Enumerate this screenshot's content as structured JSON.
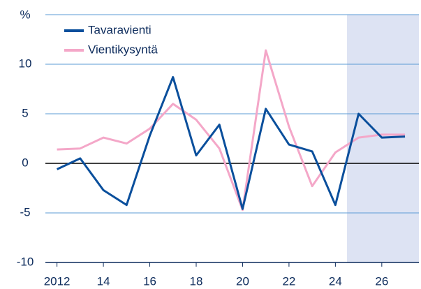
{
  "chart_data": {
    "type": "line",
    "y_unit": "%",
    "x": [
      2012,
      2013,
      2014,
      2015,
      2016,
      2017,
      2018,
      2019,
      2020,
      2021,
      2022,
      2023,
      2024,
      2025,
      2026,
      2027
    ],
    "series": [
      {
        "name": "Tavaravienti",
        "color": "#0a4f9c",
        "values": [
          -0.6,
          0.5,
          -2.7,
          -4.2,
          2.8,
          8.7,
          0.8,
          3.9,
          -4.6,
          5.5,
          1.9,
          1.2,
          -4.2,
          5.0,
          2.6,
          2.7
        ]
      },
      {
        "name": "Vientikysyntä",
        "color": "#f4a7c8",
        "values": [
          1.4,
          1.5,
          2.6,
          2.0,
          3.5,
          6.0,
          4.4,
          1.5,
          -4.7,
          11.4,
          3.7,
          -2.3,
          1.1,
          2.6,
          2.9,
          2.9
        ]
      }
    ],
    "xlim": [
      2011.5,
      2027.6
    ],
    "xticks": [
      2012,
      {
        "value": 2014,
        "label": "14"
      },
      {
        "value": 2016,
        "label": "16"
      },
      {
        "value": 2018,
        "label": "18"
      },
      {
        "value": 2020,
        "label": "20"
      },
      {
        "value": 2022,
        "label": "22"
      },
      {
        "value": 2024,
        "label": "24"
      },
      {
        "value": 2026,
        "label": "26"
      }
    ],
    "ylim": [
      -10,
      15
    ],
    "yticks": [
      -10,
      -5,
      0,
      5,
      10
    ],
    "grid": true,
    "forecast_from": 2024.5,
    "legend": "top-left"
  }
}
